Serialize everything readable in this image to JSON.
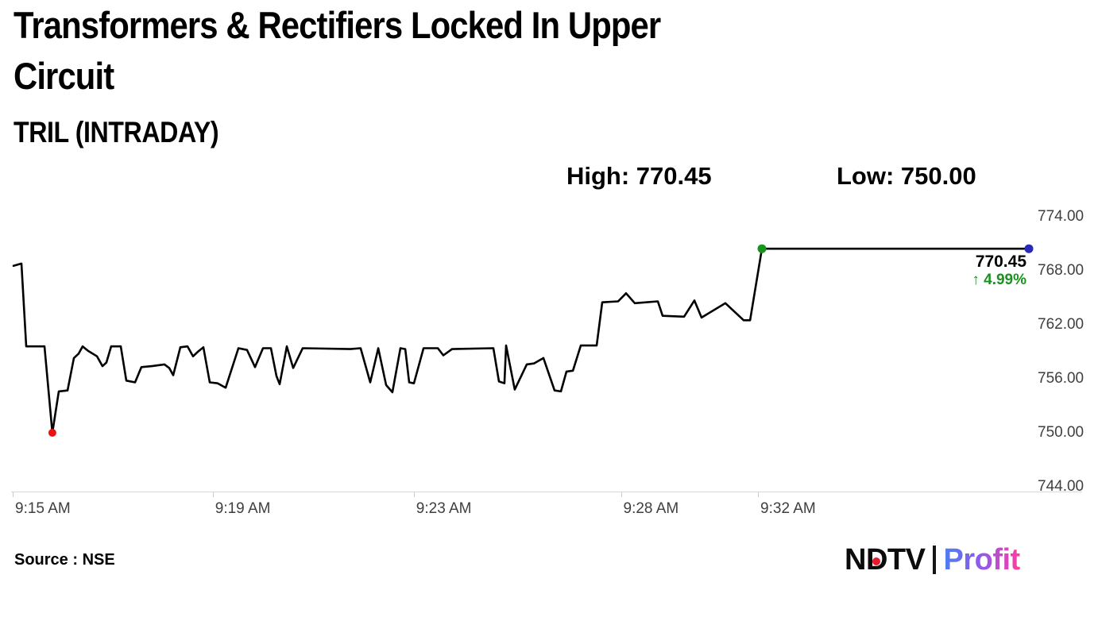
{
  "page": {
    "title_line1": "Transformers & Rectifiers Locked In Upper",
    "title_line2": "Circuit",
    "subtitle": "TRIL (INTRADAY)",
    "source": "Source : NSE"
  },
  "stats": {
    "high": "High: 770.45",
    "low": "Low: 750.00"
  },
  "annotation": {
    "last_price": "770.45",
    "change": "↑ 4.99%"
  },
  "logo": {
    "brand": "NDTV",
    "product": "Profit"
  },
  "colors": {
    "line": "#000000",
    "low_marker": "#ee1111",
    "upper_circuit_marker": "#18941d",
    "last_marker": "#2a2ab8",
    "gain_text": "#18941d",
    "axis_text": "#3f3f3f",
    "axis_line": "#d8d8d8",
    "brand_red": "#e8192c",
    "profit_gradient_start": "#4a7ff2",
    "profit_gradient_mid": "#9a55e8",
    "profit_gradient_end": "#ff3d9e"
  },
  "chart_data": {
    "type": "line",
    "title": "TRIL (INTRADAY)",
    "xlabel": "",
    "ylabel": "",
    "high": 770.45,
    "low": 750.0,
    "last": 770.45,
    "change_pct": 4.99,
    "ylim": [
      744,
      774
    ],
    "grid": false,
    "legend": "none",
    "y_ticks": [
      {
        "value": 774,
        "label": "774.00"
      },
      {
        "value": 768,
        "label": "768.00"
      },
      {
        "value": 762,
        "label": "762.00"
      },
      {
        "value": 756,
        "label": "756.00"
      },
      {
        "value": 750,
        "label": "750.00"
      },
      {
        "value": 744,
        "label": "744.00"
      }
    ],
    "x_ticks": [
      {
        "label": "9:15 AM",
        "pos": 0.0
      },
      {
        "label": "9:19 AM",
        "pos": 0.197
      },
      {
        "label": "9:23 AM",
        "pos": 0.395
      },
      {
        "label": "9:28 AM",
        "pos": 0.599
      },
      {
        "label": "9:32 AM",
        "pos": 0.734
      }
    ],
    "points": [
      [
        0.0,
        768.55
      ],
      [
        0.0078,
        768.8
      ],
      [
        0.0125,
        759.6
      ],
      [
        0.0305,
        759.6
      ],
      [
        0.0383,
        750.0
      ],
      [
        0.0446,
        754.6
      ],
      [
        0.0532,
        754.7
      ],
      [
        0.0595,
        758.3
      ],
      [
        0.0642,
        758.8
      ],
      [
        0.0681,
        759.6
      ],
      [
        0.0735,
        759.1
      ],
      [
        0.0822,
        758.5
      ],
      [
        0.0876,
        757.4
      ],
      [
        0.0915,
        757.8
      ],
      [
        0.0962,
        759.6
      ],
      [
        0.1056,
        759.6
      ],
      [
        0.1111,
        755.8
      ],
      [
        0.1197,
        755.6
      ],
      [
        0.126,
        757.3
      ],
      [
        0.1362,
        757.4
      ],
      [
        0.1487,
        757.6
      ],
      [
        0.1534,
        757.2
      ],
      [
        0.1573,
        756.4
      ],
      [
        0.1643,
        759.5
      ],
      [
        0.1714,
        759.6
      ],
      [
        0.1768,
        758.5
      ],
      [
        0.1815,
        759.0
      ],
      [
        0.187,
        759.5
      ],
      [
        0.1933,
        755.6
      ],
      [
        0.2011,
        755.5
      ],
      [
        0.2089,
        755.0
      ],
      [
        0.2215,
        759.4
      ],
      [
        0.23,
        759.2
      ],
      [
        0.2379,
        757.3
      ],
      [
        0.2457,
        759.4
      ],
      [
        0.2535,
        759.4
      ],
      [
        0.259,
        756.3
      ],
      [
        0.2621,
        755.4
      ],
      [
        0.2692,
        759.6
      ],
      [
        0.2754,
        757.2
      ],
      [
        0.2848,
        759.4
      ],
      [
        0.3318,
        759.3
      ],
      [
        0.3419,
        759.4
      ],
      [
        0.3513,
        755.6
      ],
      [
        0.3592,
        759.4
      ],
      [
        0.367,
        755.3
      ],
      [
        0.3732,
        754.5
      ],
      [
        0.3811,
        759.4
      ],
      [
        0.3858,
        759.3
      ],
      [
        0.3897,
        755.6
      ],
      [
        0.3944,
        755.5
      ],
      [
        0.4038,
        759.4
      ],
      [
        0.4179,
        759.4
      ],
      [
        0.4233,
        758.6
      ],
      [
        0.4319,
        759.3
      ],
      [
        0.4726,
        759.4
      ],
      [
        0.4781,
        755.7
      ],
      [
        0.4835,
        755.5
      ],
      [
        0.4851,
        759.7
      ],
      [
        0.4937,
        754.8
      ],
      [
        0.5055,
        757.6
      ],
      [
        0.5125,
        757.7
      ],
      [
        0.5219,
        758.3
      ],
      [
        0.5329,
        754.7
      ],
      [
        0.5391,
        754.6
      ],
      [
        0.5446,
        756.8
      ],
      [
        0.5509,
        756.9
      ],
      [
        0.5587,
        759.7
      ],
      [
        0.5743,
        759.7
      ],
      [
        0.5798,
        764.5
      ],
      [
        0.5955,
        764.6
      ],
      [
        0.6033,
        765.5
      ],
      [
        0.6119,
        764.4
      ],
      [
        0.6346,
        764.6
      ],
      [
        0.6393,
        763.0
      ],
      [
        0.6604,
        762.9
      ],
      [
        0.6706,
        764.7
      ],
      [
        0.6776,
        762.8
      ],
      [
        0.7011,
        764.4
      ],
      [
        0.7191,
        762.5
      ],
      [
        0.7254,
        762.5
      ],
      [
        0.7371,
        770.45
      ],
      [
        1.0,
        770.45
      ]
    ],
    "markers": [
      {
        "pos": 0.0383,
        "price": 750.0,
        "color_key": "low_marker",
        "r": 5,
        "name": "low-point-marker"
      },
      {
        "pos": 0.7371,
        "price": 770.45,
        "color_key": "upper_circuit_marker",
        "r": 5.5,
        "name": "upper-circuit-marker"
      },
      {
        "pos": 1.0,
        "price": 770.45,
        "color_key": "last_marker",
        "r": 5.5,
        "name": "last-price-marker"
      }
    ]
  }
}
